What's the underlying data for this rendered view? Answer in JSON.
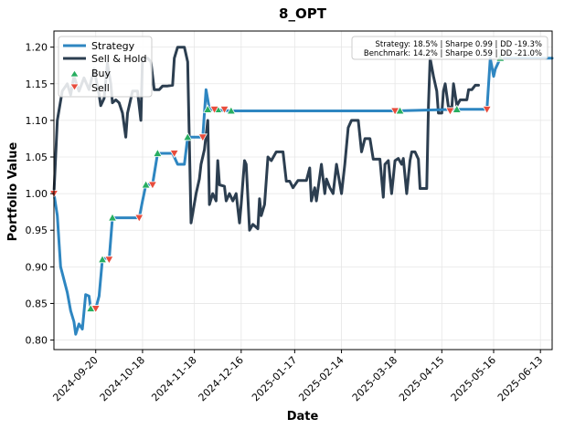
{
  "chart_data": {
    "type": "line",
    "title": "8_OPT",
    "xlabel": "Date",
    "ylabel": "Portfolio Value",
    "x_start": "2024-08-26",
    "x_end": "2025-06-20",
    "xlim": [
      "2024-08-26",
      "2025-06-20"
    ],
    "ylim": [
      0.787,
      1.222
    ],
    "grid": true,
    "legend_position": "top-left",
    "stats_box_position": "top-right",
    "stats": {
      "strategy": "Strategy: 18.5% | Sharpe 0.99 | DD -19.3%",
      "benchmark": "Benchmark: 14.2% | Sharpe 0.59 | DD -21.0%"
    },
    "x_ticks": [
      "2024-09-20",
      "2024-10-18",
      "2024-11-18",
      "2024-12-16",
      "2025-01-17",
      "2025-02-14",
      "2025-03-18",
      "2025-04-15",
      "2025-05-16",
      "2025-06-13"
    ],
    "y_ticks": [
      0.8,
      0.85,
      0.9,
      0.95,
      1.0,
      1.05,
      1.1,
      1.15,
      1.2
    ],
    "y_tick_labels": [
      "0.80",
      "0.85",
      "0.90",
      "0.95",
      "1.00",
      "1.05",
      "1.10",
      "1.15",
      "1.20"
    ],
    "series": [
      {
        "name": "Strategy",
        "color": "#2e86c1",
        "points": [
          [
            "2024-08-26",
            1.0
          ],
          [
            "2024-08-28",
            0.97
          ],
          [
            "2024-08-30",
            0.9
          ],
          [
            "2024-09-03",
            0.865
          ],
          [
            "2024-09-05",
            0.84
          ],
          [
            "2024-09-07",
            0.825
          ],
          [
            "2024-09-08",
            0.808
          ],
          [
            "2024-09-10",
            0.822
          ],
          [
            "2024-09-12",
            0.815
          ],
          [
            "2024-09-14",
            0.862
          ],
          [
            "2024-09-16",
            0.86
          ],
          [
            "2024-09-17",
            0.843
          ],
          [
            "2024-09-20",
            0.843
          ],
          [
            "2024-09-22",
            0.86
          ],
          [
            "2024-09-24",
            0.91
          ],
          [
            "2024-09-26",
            0.912
          ],
          [
            "2024-09-28",
            0.91
          ],
          [
            "2024-09-30",
            0.967
          ],
          [
            "2024-10-16",
            0.967
          ],
          [
            "2024-10-18",
            0.99
          ],
          [
            "2024-10-20",
            1.012
          ],
          [
            "2024-10-24",
            1.013
          ],
          [
            "2024-10-27",
            1.055
          ],
          [
            "2024-11-05",
            1.055
          ],
          [
            "2024-11-08",
            1.04
          ],
          [
            "2024-11-12",
            1.04
          ],
          [
            "2024-11-14",
            1.077
          ],
          [
            "2024-11-23",
            1.077
          ],
          [
            "2024-11-25",
            1.142
          ],
          [
            "2024-11-27",
            1.115
          ],
          [
            "2024-12-10",
            1.113
          ],
          [
            "2025-03-18",
            1.113
          ],
          [
            "2025-04-24",
            1.115
          ],
          [
            "2025-05-12",
            1.115
          ],
          [
            "2025-05-14",
            1.185
          ],
          [
            "2025-05-16",
            1.16
          ],
          [
            "2025-05-17",
            1.17
          ],
          [
            "2025-05-20",
            1.185
          ],
          [
            "2025-06-20",
            1.185
          ]
        ]
      },
      {
        "name": "Sell & Hold",
        "color": "#2c3e50",
        "points": [
          [
            "2024-08-26",
            1.0
          ],
          [
            "2024-08-28",
            1.1
          ],
          [
            "2024-08-31",
            1.14
          ],
          [
            "2024-09-03",
            1.15
          ],
          [
            "2024-09-05",
            1.135
          ],
          [
            "2024-09-07",
            1.16
          ],
          [
            "2024-09-10",
            1.14
          ],
          [
            "2024-09-13",
            1.158
          ],
          [
            "2024-09-16",
            1.142
          ],
          [
            "2024-09-19",
            1.17
          ],
          [
            "2024-09-22",
            1.135
          ],
          [
            "2024-09-23",
            1.12
          ],
          [
            "2024-09-25",
            1.13
          ],
          [
            "2024-09-27",
            1.178
          ],
          [
            "2024-09-29",
            1.15
          ],
          [
            "2024-09-30",
            1.124
          ],
          [
            "2024-10-02",
            1.128
          ],
          [
            "2024-10-04",
            1.124
          ],
          [
            "2024-10-06",
            1.11
          ],
          [
            "2024-10-08",
            1.077
          ],
          [
            "2024-10-09",
            1.11
          ],
          [
            "2024-10-12",
            1.14
          ],
          [
            "2024-10-15",
            1.14
          ],
          [
            "2024-10-17",
            1.1
          ],
          [
            "2024-10-18",
            1.185
          ],
          [
            "2024-10-21",
            1.185
          ],
          [
            "2024-10-23",
            1.18
          ],
          [
            "2024-10-25",
            1.142
          ],
          [
            "2024-10-28",
            1.142
          ],
          [
            "2024-10-30",
            1.147
          ],
          [
            "2024-11-02",
            1.147
          ],
          [
            "2024-11-05",
            1.148
          ],
          [
            "2024-11-06",
            1.185
          ],
          [
            "2024-11-08",
            1.2
          ],
          [
            "2024-11-12",
            1.2
          ],
          [
            "2024-11-14",
            1.18
          ],
          [
            "2024-11-16",
            0.96
          ],
          [
            "2024-11-19",
            1.0
          ],
          [
            "2024-11-21",
            1.02
          ],
          [
            "2024-11-22",
            1.04
          ],
          [
            "2024-11-24",
            1.06
          ],
          [
            "2024-11-26",
            1.1
          ],
          [
            "2024-11-27",
            0.985
          ],
          [
            "2024-11-29",
            1.0
          ],
          [
            "2024-12-01",
            0.99
          ],
          [
            "2024-12-02",
            1.045
          ],
          [
            "2024-12-03",
            1.012
          ],
          [
            "2024-12-06",
            1.01
          ],
          [
            "2024-12-07",
            0.99
          ],
          [
            "2024-12-09",
            1.0
          ],
          [
            "2024-12-11",
            0.99
          ],
          [
            "2024-12-13",
            1.0
          ],
          [
            "2024-12-15",
            0.96
          ],
          [
            "2024-12-16",
            0.985
          ],
          [
            "2024-12-18",
            1.045
          ],
          [
            "2024-12-19",
            1.04
          ],
          [
            "2024-12-21",
            0.95
          ],
          [
            "2024-12-23",
            0.958
          ],
          [
            "2024-12-26",
            0.952
          ],
          [
            "2024-12-27",
            0.993
          ],
          [
            "2024-12-28",
            0.97
          ],
          [
            "2024-12-30",
            0.985
          ],
          [
            "2025-01-01",
            1.05
          ],
          [
            "2025-01-03",
            1.045
          ],
          [
            "2025-01-06",
            1.057
          ],
          [
            "2025-01-10",
            1.057
          ],
          [
            "2025-01-12",
            1.017
          ],
          [
            "2025-01-14",
            1.017
          ],
          [
            "2025-01-16",
            1.008
          ],
          [
            "2025-01-19",
            1.018
          ],
          [
            "2025-01-24",
            1.018
          ],
          [
            "2025-01-26",
            1.035
          ],
          [
            "2025-01-27",
            0.99
          ],
          [
            "2025-01-29",
            1.008
          ],
          [
            "2025-01-30",
            0.99
          ],
          [
            "2025-02-02",
            1.04
          ],
          [
            "2025-02-04",
            1.0
          ],
          [
            "2025-02-05",
            1.02
          ],
          [
            "2025-02-07",
            1.008
          ],
          [
            "2025-02-09",
            1.0
          ],
          [
            "2025-02-11",
            1.04
          ],
          [
            "2025-02-14",
            1.0
          ],
          [
            "2025-02-16",
            1.04
          ],
          [
            "2025-02-18",
            1.09
          ],
          [
            "2025-02-20",
            1.1
          ],
          [
            "2025-02-24",
            1.1
          ],
          [
            "2025-02-26",
            1.057
          ],
          [
            "2025-02-28",
            1.075
          ],
          [
            "2025-03-03",
            1.075
          ],
          [
            "2025-03-05",
            1.047
          ],
          [
            "2025-03-09",
            1.047
          ],
          [
            "2025-03-11",
            0.995
          ],
          [
            "2025-03-12",
            1.04
          ],
          [
            "2025-03-14",
            1.045
          ],
          [
            "2025-03-16",
            1.0
          ],
          [
            "2025-03-18",
            1.045
          ],
          [
            "2025-03-20",
            1.048
          ],
          [
            "2025-03-22",
            1.04
          ],
          [
            "2025-03-23",
            1.048
          ],
          [
            "2025-03-25",
            1.0
          ],
          [
            "2025-03-27",
            1.045
          ],
          [
            "2025-03-28",
            1.057
          ],
          [
            "2025-03-30",
            1.057
          ],
          [
            "2025-04-01",
            1.047
          ],
          [
            "2025-04-02",
            1.007
          ],
          [
            "2025-04-06",
            1.007
          ],
          [
            "2025-04-07",
            1.12
          ],
          [
            "2025-04-08",
            1.185
          ],
          [
            "2025-04-10",
            1.16
          ],
          [
            "2025-04-12",
            1.14
          ],
          [
            "2025-04-13",
            1.11
          ],
          [
            "2025-04-15",
            1.11
          ],
          [
            "2025-04-16",
            1.14
          ],
          [
            "2025-04-17",
            1.15
          ],
          [
            "2025-04-19",
            1.118
          ],
          [
            "2025-04-21",
            1.118
          ],
          [
            "2025-04-22",
            1.15
          ],
          [
            "2025-04-24",
            1.12
          ],
          [
            "2025-04-26",
            1.128
          ],
          [
            "2025-04-28",
            1.128
          ],
          [
            "2025-04-30",
            1.128
          ],
          [
            "2025-05-01",
            1.142
          ],
          [
            "2025-05-03",
            1.142
          ],
          [
            "2025-05-05",
            1.148
          ],
          [
            "2025-05-07",
            1.148
          ]
        ]
      }
    ],
    "buy_markers": [
      [
        "2024-09-17",
        0.843
      ],
      [
        "2024-09-24",
        0.91
      ],
      [
        "2024-09-30",
        0.967
      ],
      [
        "2024-10-20",
        1.012
      ],
      [
        "2024-10-27",
        1.055
      ],
      [
        "2024-11-14",
        1.077
      ],
      [
        "2024-11-26",
        1.115
      ],
      [
        "2024-12-02",
        1.115
      ],
      [
        "2024-12-10",
        1.113
      ],
      [
        "2025-03-21",
        1.113
      ],
      [
        "2025-04-24",
        1.115
      ],
      [
        "2025-05-20",
        1.185
      ]
    ],
    "sell_markers": [
      [
        "2024-08-26",
        1.0
      ],
      [
        "2024-09-20",
        0.843
      ],
      [
        "2024-09-28",
        0.91
      ],
      [
        "2024-10-16",
        0.967
      ],
      [
        "2024-10-24",
        1.012
      ],
      [
        "2024-11-06",
        1.055
      ],
      [
        "2024-11-23",
        1.077
      ],
      [
        "2024-11-30",
        1.115
      ],
      [
        "2024-12-06",
        1.115
      ],
      [
        "2025-03-18",
        1.113
      ],
      [
        "2025-04-20",
        1.113
      ],
      [
        "2025-05-12",
        1.115
      ]
    ],
    "legend": [
      {
        "label": "Strategy",
        "kind": "line",
        "color": "#2e86c1"
      },
      {
        "label": "Sell & Hold",
        "kind": "line",
        "color": "#2c3e50"
      },
      {
        "label": "Buy",
        "kind": "marker",
        "color": "#27ae60"
      },
      {
        "label": "Sell",
        "kind": "marker",
        "color": "#e74c3c"
      }
    ]
  }
}
